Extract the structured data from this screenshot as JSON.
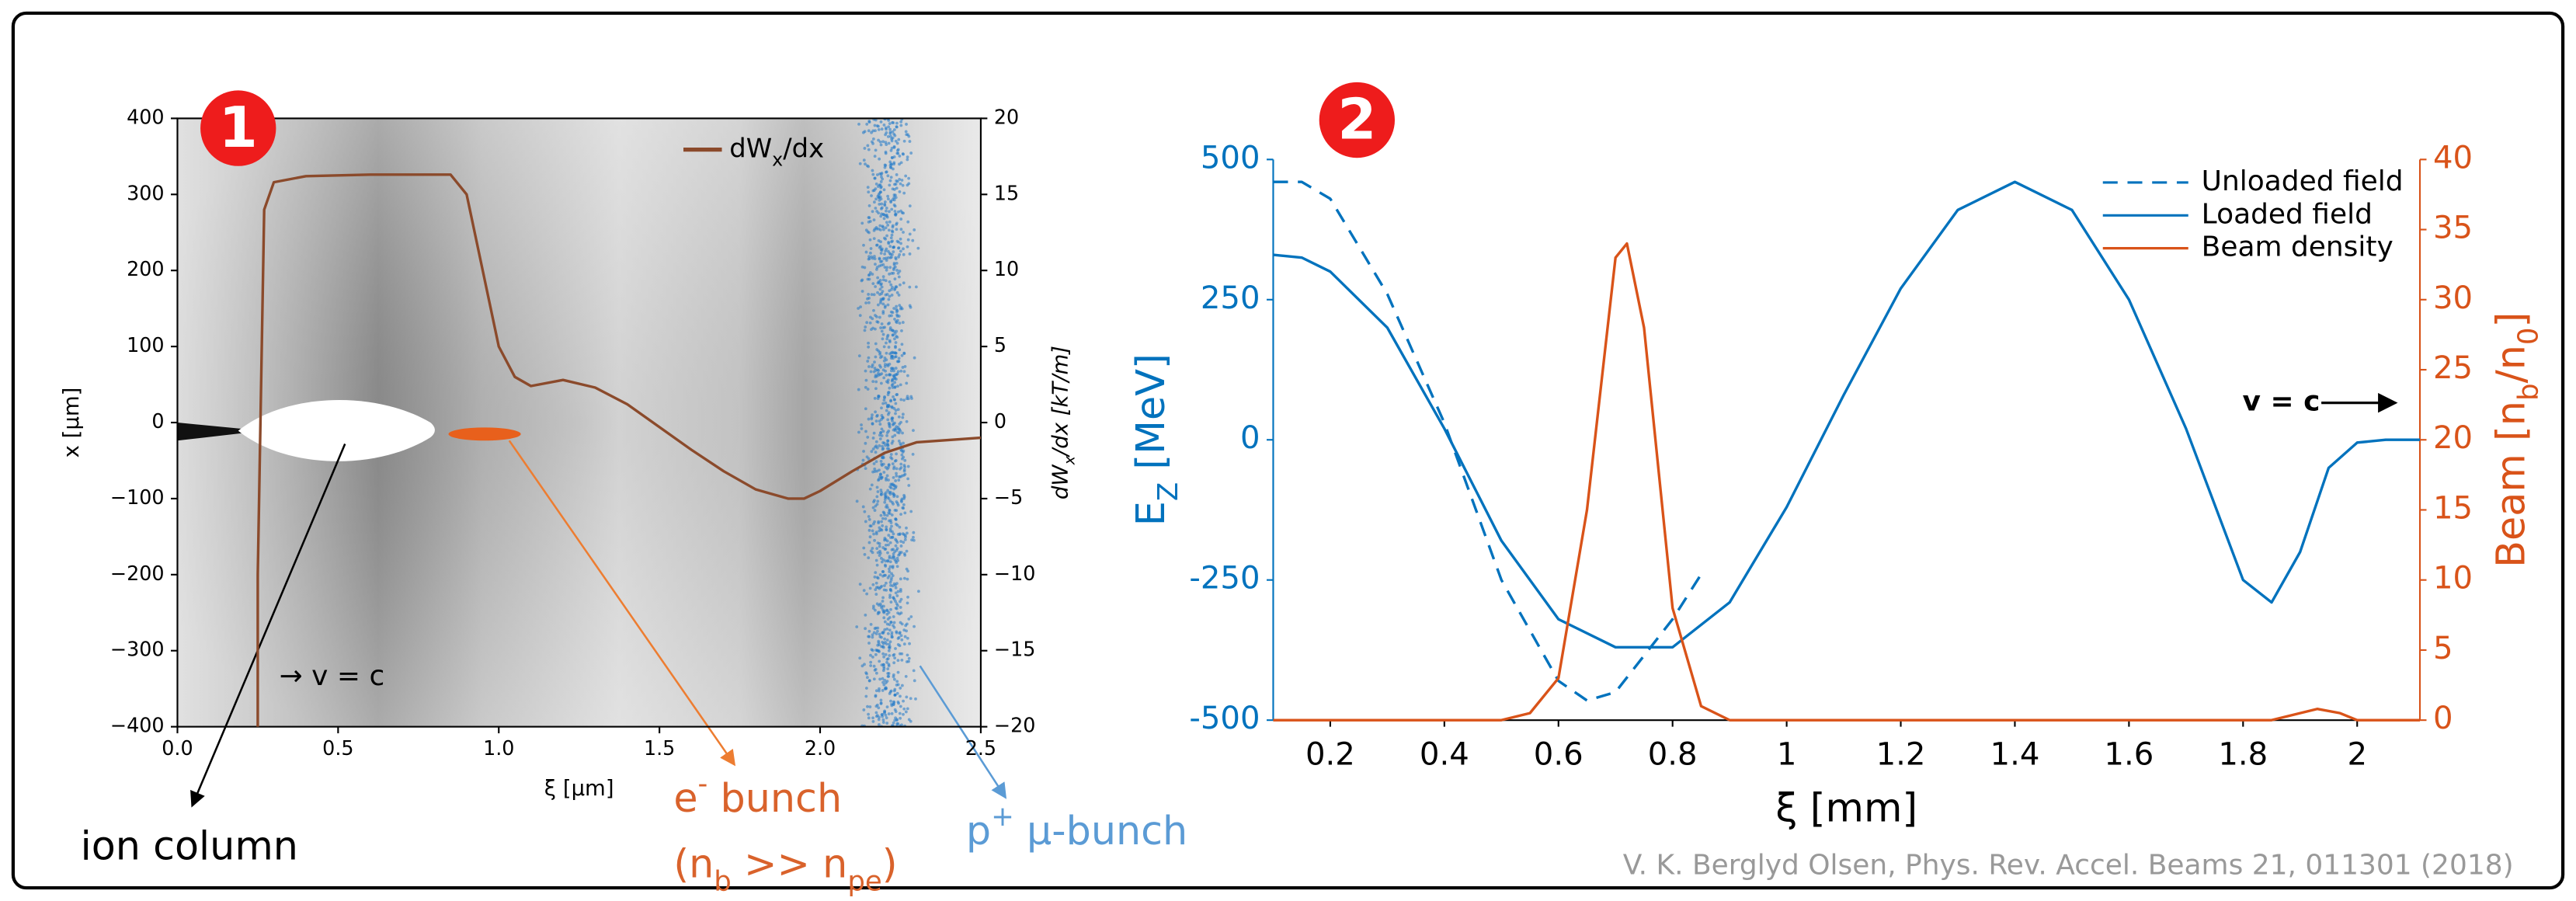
{
  "chart_data": [
    {
      "type": "line",
      "label": "1",
      "xlabel": "ξ [μm]",
      "ylabel": "x [μm]",
      "y2label": [
        {
          "text": "dW"
        },
        {
          "text": "x",
          "sub": true
        },
        {
          "text": "/dx [kT/m]"
        }
      ],
      "xlim": [
        0,
        2.5
      ],
      "ylim": [
        -400,
        400
      ],
      "y2lim": [
        -20,
        20
      ],
      "xticks": [
        {
          "value": 0,
          "label": "0.0"
        },
        0.5,
        {
          "value": 1,
          "label": "1.0"
        },
        1.5,
        {
          "value": 2,
          "label": "2.0"
        },
        2.5
      ],
      "yticks": [
        {
          "value": -400,
          "label": "−400"
        },
        {
          "value": -300,
          "label": "−300"
        },
        {
          "value": -200,
          "label": "−200"
        },
        {
          "value": -100,
          "label": "−100"
        },
        0,
        100,
        200,
        300,
        400
      ],
      "y2ticks": [
        {
          "value": -20,
          "label": "−20"
        },
        {
          "value": -15,
          "label": "−15"
        },
        {
          "value": -10,
          "label": "−10"
        },
        {
          "value": -5,
          "label": "−5"
        },
        0,
        5,
        10,
        15,
        20
      ],
      "series": [
        {
          "name": [
            {
              "text": "dW"
            },
            {
              "text": "x",
              "sub": true
            },
            {
              "text": "/dx"
            }
          ],
          "color": "#8b4a2b",
          "axis": "y2",
          "x": [
            0.25,
            0.25,
            0.27,
            0.3,
            0.4,
            0.6,
            0.85,
            0.9,
            0.95,
            1.0,
            1.05,
            1.1,
            1.2,
            1.3,
            1.4,
            1.5,
            1.6,
            1.7,
            1.8,
            1.9,
            1.95,
            2.0,
            2.1,
            2.2,
            2.3,
            2.5
          ],
          "values": [
            -20,
            -10,
            14,
            15.8,
            16.2,
            16.3,
            16.3,
            15,
            10,
            5,
            3,
            2.4,
            2.8,
            2.3,
            1.2,
            -0.3,
            -1.8,
            -3.2,
            -4.4,
            -5,
            -5,
            -4.5,
            -3.2,
            -2,
            -1.3,
            -1
          ]
        }
      ],
      "annotations": [
        {
          "text": "→ v = c",
          "color": "#000000"
        },
        {
          "text": "ion column",
          "color": "#000000"
        },
        {
          "text": [
            {
              "text": "e"
            },
            {
              "text": "-",
              "sup": true
            },
            {
              "text": " bunch"
            }
          ],
          "color": "#d9622b"
        },
        {
          "text": [
            {
              "text": "(n"
            },
            {
              "text": "b",
              "sub": true
            },
            {
              "text": " >> n"
            },
            {
              "text": "pe",
              "sub": true
            },
            {
              "text": ")"
            }
          ],
          "color": "#d9622b"
        },
        {
          "text": [
            {
              "text": "p"
            },
            {
              "text": "+",
              "sup": true
            },
            {
              "text": "  μ-bunch"
            }
          ],
          "color": "#5b9bd5"
        }
      ]
    },
    {
      "type": "line",
      "label": "2",
      "xlabel": "ξ [mm]",
      "ylabel": [
        {
          "text": "E"
        },
        {
          "text": "Z",
          "sub": true
        },
        {
          "text": " [MeV]"
        }
      ],
      "y2label": [
        {
          "text": "Beam [n"
        },
        {
          "text": "b",
          "sub": true
        },
        {
          "text": "/n"
        },
        {
          "text": "0",
          "sub": true
        },
        {
          "text": "]"
        }
      ],
      "xlim": [
        0.1,
        2.11
      ],
      "ylim": [
        -500,
        500
      ],
      "y2lim": [
        0,
        40
      ],
      "xticks": [
        0.2,
        0.4,
        0.6,
        0.8,
        1,
        1.2,
        1.4,
        1.6,
        1.8,
        2
      ],
      "yticks": [
        -500,
        -250,
        0,
        250,
        500
      ],
      "y2ticks": [
        0,
        5,
        10,
        15,
        20,
        25,
        30,
        35,
        40
      ],
      "series": [
        {
          "name": "Unloaded field",
          "color": "#0072bd",
          "dash": true,
          "x": [
            0.1,
            0.15,
            0.2,
            0.3,
            0.4,
            0.5,
            0.6,
            0.65,
            0.7,
            0.8,
            0.85
          ],
          "values": [
            460,
            460,
            430,
            260,
            30,
            -250,
            -430,
            -465,
            -450,
            -320,
            -240
          ]
        },
        {
          "name": "Loaded field",
          "color": "#0072bd",
          "x": [
            0.1,
            0.15,
            0.2,
            0.3,
            0.4,
            0.5,
            0.6,
            0.7,
            0.8,
            0.9,
            1.0,
            1.1,
            1.2,
            1.3,
            1.4,
            1.5,
            1.6,
            1.7,
            1.8,
            1.85,
            1.9,
            1.95,
            2.0,
            2.05,
            2.11
          ],
          "values": [
            330,
            325,
            300,
            200,
            20,
            -180,
            -320,
            -370,
            -370,
            -290,
            -120,
            80,
            270,
            410,
            460,
            410,
            250,
            20,
            -250,
            -290,
            -200,
            -50,
            -5,
            0,
            0
          ]
        },
        {
          "name": "Beam density",
          "color": "#d95319",
          "axis": "y2",
          "x": [
            0.1,
            0.5,
            0.55,
            0.6,
            0.65,
            0.7,
            0.72,
            0.75,
            0.8,
            0.85,
            0.9,
            1.85,
            1.9,
            1.93,
            1.97,
            2.0,
            2.11
          ],
          "values": [
            0,
            0,
            0.5,
            3,
            15,
            33,
            34,
            28,
            8,
            1,
            0,
            0,
            0.5,
            0.8,
            0.5,
            0,
            0
          ]
        }
      ],
      "annotations": [
        {
          "text": "v = c",
          "color": "#000000"
        }
      ]
    }
  ],
  "source": "V. K. Berglyd Olsen, Phys. Rev. Accel. Beams 21, 011301 (2018)"
}
